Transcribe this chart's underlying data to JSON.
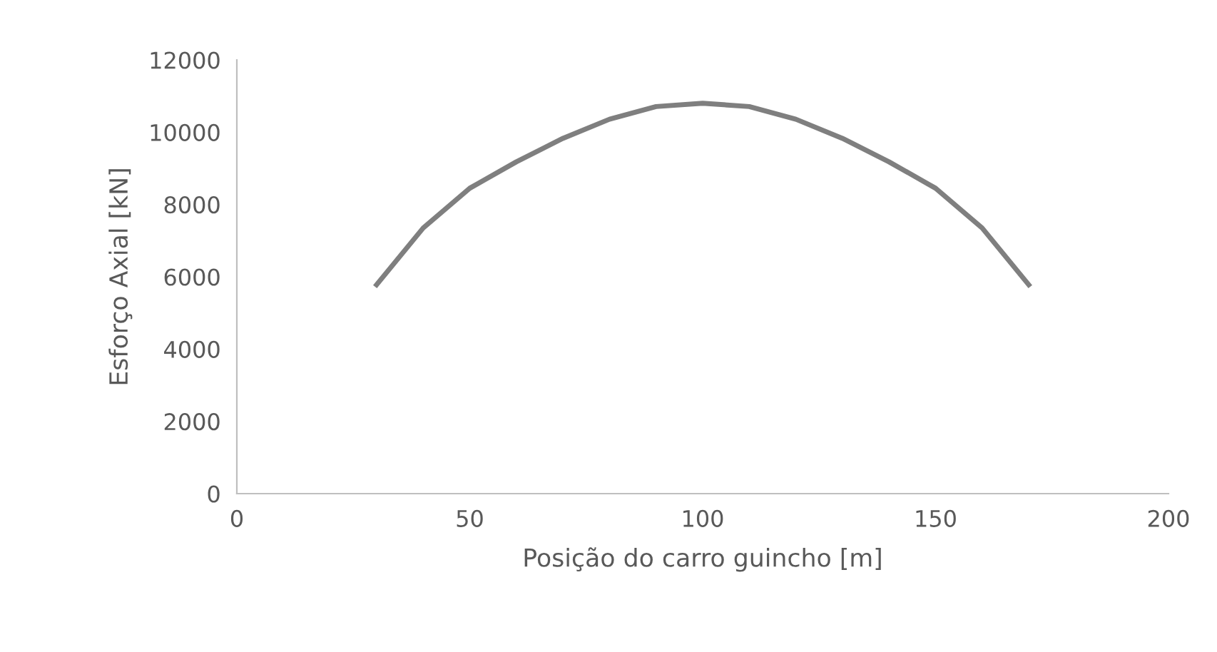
{
  "chart_data": {
    "type": "line",
    "xlabel": "Posição do carro guincho [m]",
    "ylabel": "Esforço Axial [kN]",
    "x": [
      30,
      40,
      50,
      60,
      70,
      80,
      90,
      100,
      110,
      120,
      130,
      140,
      150,
      160,
      170
    ],
    "series": [
      {
        "color": "#7f7f7f",
        "values": [
          5780,
          7350,
          8450,
          9180,
          9830,
          10360,
          10710,
          10800,
          10710,
          10360,
          9830,
          9180,
          8450,
          7350,
          5780
        ]
      }
    ],
    "xlim": [
      0,
      200
    ],
    "xticks": [
      0,
      50,
      100,
      150,
      200
    ],
    "ylim": [
      0,
      12000
    ],
    "yticks": [
      0,
      2000,
      4000,
      6000,
      8000,
      10000,
      12000
    ],
    "grid": false,
    "legend": false,
    "marker": "none",
    "line_style": "solid"
  }
}
